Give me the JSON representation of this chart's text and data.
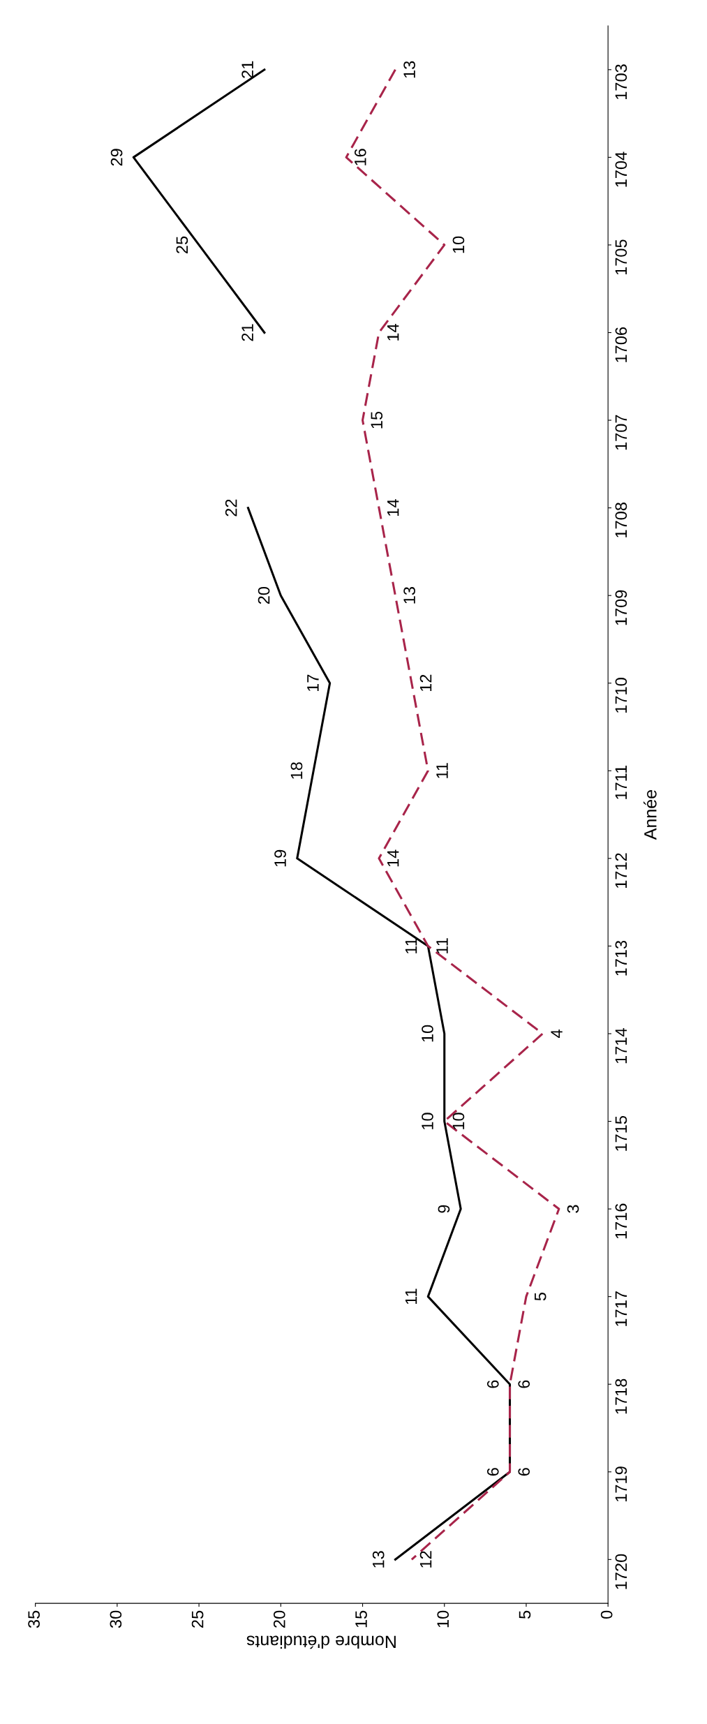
{
  "chart_data": {
    "type": "line",
    "orientation": "horizontal",
    "xlabel": "Nombre d'étudiants",
    "ylabel": "Année",
    "categories": [
      "1703",
      "1704",
      "1705",
      "1706",
      "1707",
      "1708",
      "1709",
      "1710",
      "1711",
      "1712",
      "1713",
      "1714",
      "1715",
      "1716",
      "1717",
      "1718",
      "1719",
      "1720"
    ],
    "series": [
      {
        "color": "#000000",
        "line_style": "solid",
        "values": [
          21,
          29,
          25,
          21,
          null,
          22,
          20,
          17,
          18,
          19,
          11,
          10,
          10,
          9,
          11,
          6,
          6,
          13
        ]
      },
      {
        "color": "#a8244a",
        "line_style": "dashed",
        "values": [
          13,
          16,
          10,
          14,
          15,
          14,
          13,
          12,
          11,
          14,
          11,
          4,
          10,
          3,
          5,
          6,
          6,
          12
        ]
      }
    ],
    "xlim": [
      35,
      0
    ],
    "xticks": [
      0,
      5,
      10,
      15,
      20,
      25,
      30,
      35
    ],
    "data_labels": true,
    "grid": false,
    "legend": false,
    "marker": "none"
  }
}
